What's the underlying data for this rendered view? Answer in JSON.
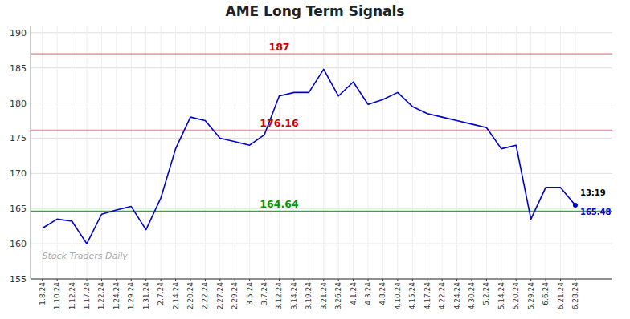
{
  "chart_data": {
    "type": "line",
    "title": "AME Long Term Signals",
    "categories": [
      "1.8.24",
      "1.10.24",
      "1.12.24",
      "1.17.24",
      "1.22.24",
      "1.24.24",
      "1.29.24",
      "1.31.24",
      "2.7.24",
      "2.14.24",
      "2.20.24",
      "2.22.24",
      "2.27.24",
      "2.29.24",
      "3.5.24",
      "3.7.24",
      "3.12.24",
      "3.14.24",
      "3.19.24",
      "3.21.24",
      "3.26.24",
      "4.1.24",
      "4.3.24",
      "4.8.24",
      "4.10.24",
      "4.15.24",
      "4.17.24",
      "4.22.24",
      "4.24.24",
      "4.30.24",
      "5.2.24",
      "5.14.24",
      "5.20.24",
      "5.29.24",
      "6.6.24",
      "6.21.24",
      "6.28.24"
    ],
    "values": [
      162.2,
      163.5,
      163.2,
      160.0,
      164.2,
      164.8,
      165.3,
      162.0,
      166.5,
      173.5,
      178.0,
      177.5,
      175.0,
      174.5,
      174.0,
      175.5,
      181.0,
      181.5,
      181.5,
      184.8,
      181.0,
      183.0,
      179.8,
      180.5,
      181.5,
      179.5,
      178.5,
      178.0,
      177.5,
      177.0,
      176.5,
      173.5,
      174.0,
      163.5,
      168.0,
      168.0,
      165.48
    ],
    "color": "#0000cc",
    "ylim": [
      155,
      191
    ],
    "yticks": [
      155,
      160,
      165,
      170,
      175,
      180,
      185,
      190
    ],
    "grid": true,
    "hlines": [
      {
        "value": 187.0,
        "label": "187",
        "color": "#e08080",
        "label_color": "#cc0000"
      },
      {
        "value": 176.16,
        "label": "176.16",
        "color": "#e08080",
        "label_color": "#cc0000"
      },
      {
        "value": 164.64,
        "label": "164.64",
        "color": "#00cc00",
        "label_color": "#009900"
      }
    ],
    "annotations": [
      {
        "text": "13:19",
        "color": "#000000"
      },
      {
        "text": "165.48",
        "color": "#0000cc"
      }
    ],
    "watermark": "Stock Traders Daily"
  }
}
